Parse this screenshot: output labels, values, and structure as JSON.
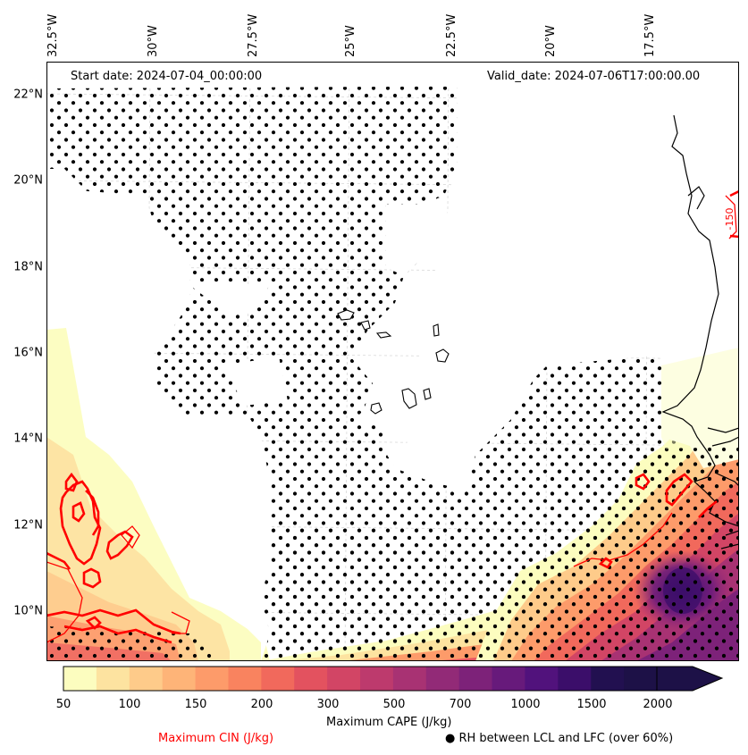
{
  "header": {
    "start_date": "Start date: 2024-07-04_00:00:00",
    "valid_date": "Valid_date: 2024-07-06T17:00:00.00"
  },
  "longitude_labels": [
    "32.5°W",
    "30°W",
    "27.5°W",
    "25°W",
    "22.5°W",
    "20°W",
    "17.5°W"
  ],
  "latitude_labels": [
    "22°N",
    "20°N",
    "18°N",
    "16°N",
    "14°N",
    "12°N",
    "10°N"
  ],
  "contour_label": "-150",
  "colorbar": {
    "title": "Maximum CAPE (J/kg)",
    "tick_labels": [
      "50",
      "100",
      "150",
      "200",
      "300",
      "500",
      "700",
      "1000",
      "1500",
      "2000"
    ],
    "colors": [
      "#fcfdbf",
      "#fde3a0",
      "#fecb8a",
      "#feb478",
      "#fd9b6a",
      "#f9835f",
      "#f1695c",
      "#e3525f",
      "#d24565",
      "#bd3a6d",
      "#a83273",
      "#922a77",
      "#7d2279",
      "#671a7b",
      "#51127c",
      "#3b0e6a",
      "#221050",
      "#1d1147"
    ]
  },
  "legend": {
    "cin_label": "Maximum CIN (J/kg)",
    "cin_color": "#ff0000",
    "rh_label": "● RH between LCL and LFC (over 60%)"
  }
}
